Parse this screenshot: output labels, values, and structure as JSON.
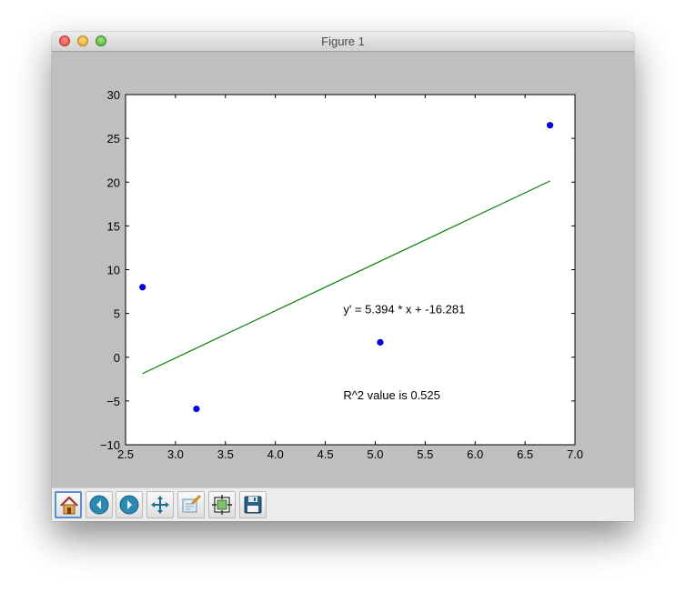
{
  "window": {
    "title": "Figure 1"
  },
  "toolbar": {
    "buttons": [
      {
        "name": "home",
        "icon": "home-icon"
      },
      {
        "name": "back",
        "icon": "back-arrow-icon"
      },
      {
        "name": "forward",
        "icon": "forward-arrow-icon"
      },
      {
        "name": "pan",
        "icon": "move-arrows-icon"
      },
      {
        "name": "zoom",
        "icon": "zoom-rect-icon"
      },
      {
        "name": "subplots",
        "icon": "subplots-config-icon"
      },
      {
        "name": "save",
        "icon": "floppy-disk-icon"
      }
    ],
    "active": "home"
  },
  "chart_data": {
    "type": "scatter",
    "title": "",
    "xlabel": "",
    "ylabel": "",
    "xlim": [
      2.5,
      7.0
    ],
    "ylim": [
      -10,
      30
    ],
    "xticks": [
      2.5,
      3.0,
      3.5,
      4.0,
      4.5,
      5.0,
      5.5,
      6.0,
      6.5,
      7.0
    ],
    "xtick_labels": [
      "2.5",
      "3.0",
      "3.5",
      "4.0",
      "4.5",
      "5.0",
      "5.5",
      "6.0",
      "6.5",
      "7.0"
    ],
    "yticks": [
      -10,
      -5,
      0,
      5,
      10,
      15,
      20,
      25,
      30
    ],
    "ytick_labels": [
      "−10",
      "−5",
      "0",
      "5",
      "10",
      "15",
      "20",
      "25",
      "30"
    ],
    "grid": false,
    "points": [
      {
        "x": 2.67,
        "y": 8.0
      },
      {
        "x": 3.21,
        "y": -5.9
      },
      {
        "x": 5.05,
        "y": 1.7
      },
      {
        "x": 6.75,
        "y": 26.5
      }
    ],
    "fit_line": {
      "x": [
        2.67,
        6.75
      ],
      "y": [
        -1.87,
        20.13
      ]
    },
    "annotations": [
      {
        "text": "y' = 5.394 * x + -16.281",
        "x": 4.68,
        "y": 5.0
      },
      {
        "text": "R^2 value is 0.525",
        "x": 4.68,
        "y": -4.8
      }
    ],
    "colors": {
      "points": "#0000ff",
      "fit_line": "#008000",
      "figure_bg": "#bfbfbf",
      "axes_bg": "#ffffff"
    }
  }
}
